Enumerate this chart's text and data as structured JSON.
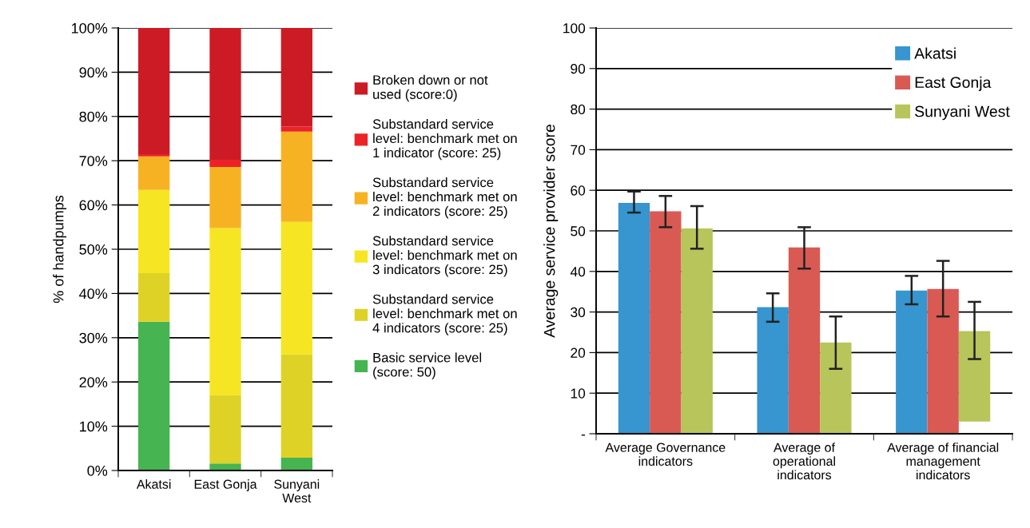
{
  "chart_data": [
    {
      "type": "bar",
      "stacked": true,
      "ylabel": "% of handpumps",
      "categories": [
        "Akatsi",
        "East Gonja",
        "Sunyani\nWest"
      ],
      "ylim": [
        0,
        100
      ],
      "yticks": [
        {
          "value": 0,
          "label": "0%"
        },
        {
          "value": 10,
          "label": "10%"
        },
        {
          "value": 20,
          "label": "20%"
        },
        {
          "value": 30,
          "label": "30%"
        },
        {
          "value": 40,
          "label": "40%"
        },
        {
          "value": 50,
          "label": "50%"
        },
        {
          "value": 60,
          "label": "60%"
        },
        {
          "value": 70,
          "label": "70%"
        },
        {
          "value": 80,
          "label": "80%"
        },
        {
          "value": 90,
          "label": "90%"
        },
        {
          "value": 100,
          "label": "100%"
        }
      ],
      "grid": "y",
      "legend": "right",
      "series": [
        {
          "name": "Basic service level\n(score: 50)",
          "color": "#46b450",
          "values": [
            33.6,
            1.6,
            2.9
          ]
        },
        {
          "name": "Substandard service\nlevel: benchmark met on\n4 indicators (score: 25)",
          "color": "#dfd227",
          "values": [
            11.0,
            15.4,
            23.3
          ]
        },
        {
          "name": "Substandard service\nlevel: benchmark met on\n3 indicators (score: 25)",
          "color": "#f6e523",
          "values": [
            18.8,
            37.8,
            30.0
          ]
        },
        {
          "name": "Substandard service\nlevel: benchmark met on\n2 indicators (score: 25)",
          "color": "#f7b223",
          "values": [
            7.6,
            13.8,
            20.4
          ]
        },
        {
          "name": "Substandard service\nlevel: benchmark met on\n1 indicator (score: 25)",
          "color": "#ec2227",
          "values": [
            0.5,
            1.6,
            1.1
          ]
        },
        {
          "name": "Broken down or not\nused (score:0)",
          "color": "#cc1b24",
          "values": [
            28.5,
            29.8,
            22.3
          ]
        }
      ]
    },
    {
      "type": "bar",
      "ylabel": "Average service provider score",
      "categories": [
        "Average Governance\nindicators",
        "Average of\noperational\nindicators",
        "Average of financial\nmanagement\nindicators"
      ],
      "ylim": [
        0,
        100
      ],
      "yticks": [
        {
          "value": 0,
          "label": "-"
        },
        10,
        20,
        30,
        40,
        50,
        60,
        70,
        80,
        90,
        100
      ],
      "grid": "y",
      "legend": "top right",
      "series": [
        {
          "name": "Akatsi",
          "color": "#3795cf",
          "values": [
            56.9,
            31.2,
            35.3
          ],
          "errors": [
            [
              54.5,
              59.7
            ],
            [
              27.6,
              34.6
            ],
            [
              31.9,
              38.9
            ]
          ]
        },
        {
          "name": "East Gonja",
          "color": "#d95a53",
          "values": [
            54.8,
            45.9,
            35.7
          ],
          "errors": [
            [
              50.9,
              58.6
            ],
            [
              40.7,
              50.9
            ],
            [
              28.9,
              42.6
            ]
          ]
        },
        {
          "name": "Sunyani West",
          "color": "#b7c55b",
          "values": [
            50.6,
            22.5,
            22.3
          ],
          "base": [
            0,
            0,
            3.0
          ],
          "errors": [
            [
              45.6,
              56.1
            ],
            [
              16.0,
              28.9
            ],
            [
              18.4,
              32.5
            ]
          ]
        }
      ]
    }
  ]
}
